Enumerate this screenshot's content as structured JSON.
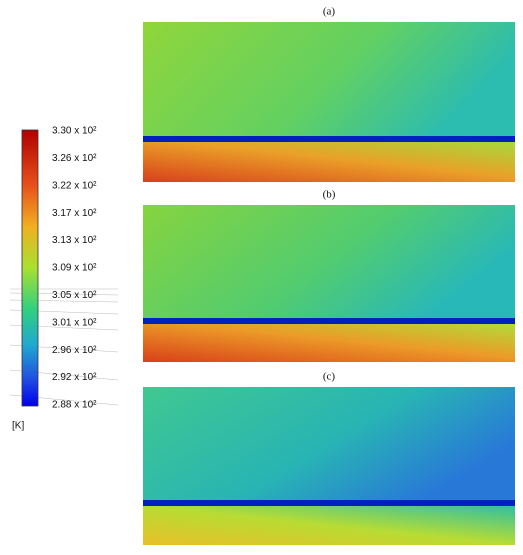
{
  "colorbar": {
    "ticks": [
      "3.30 x 10²",
      "3.26 x 10²",
      "3.22 x 10²",
      "3.17 x 10²",
      "3.13 x 10²",
      "3.09 x 10²",
      "3.05 x 10²",
      "3.01 x 10²",
      "2.96 x 10²",
      "2.92 x 10²",
      "2.88 x 10²"
    ],
    "unit": "[K]"
  },
  "panels": [
    {
      "label": "(a)"
    },
    {
      "label": "(b)"
    },
    {
      "label": "(c)"
    }
  ]
}
